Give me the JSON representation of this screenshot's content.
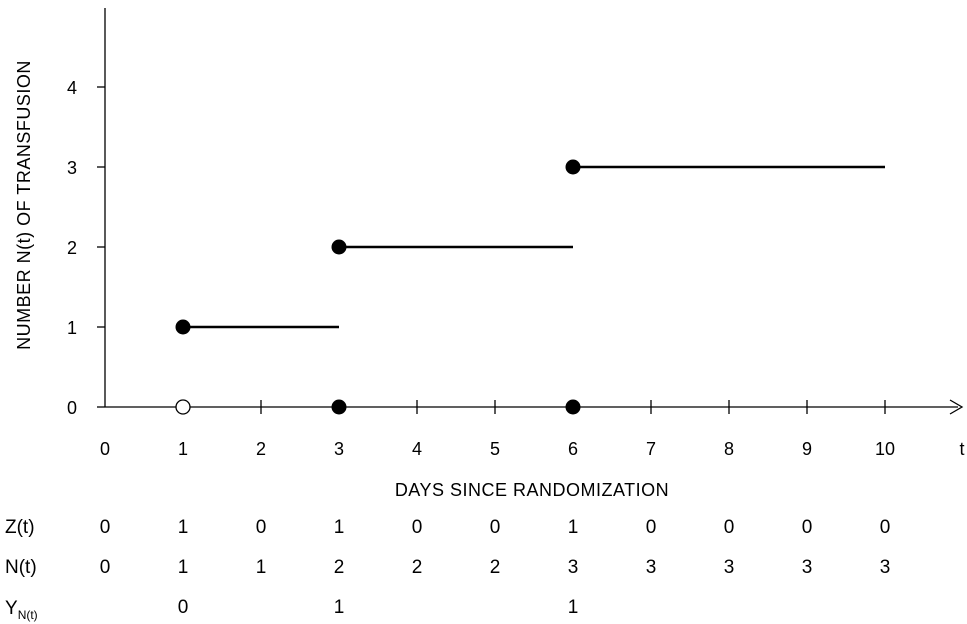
{
  "chart_data": {
    "type": "line",
    "ylabel": "NUMBER  N(t)  OF  TRANSFUSION",
    "xlabel": "DAYS  SINCE  RANDOMIZATION",
    "x_end_label": "t",
    "x_ticks": [
      0,
      1,
      2,
      3,
      4,
      5,
      6,
      7,
      8,
      9,
      10
    ],
    "y_ticks": [
      0,
      1,
      2,
      3,
      4
    ],
    "xlim": [
      0,
      11
    ],
    "ylim": [
      0,
      5
    ],
    "steps": [
      {
        "x_start": 1,
        "x_end": 3,
        "y": 1
      },
      {
        "x_start": 3,
        "x_end": 6,
        "y": 2
      },
      {
        "x_start": 6,
        "x_end": 10,
        "y": 3
      }
    ],
    "filled_points": [
      {
        "x": 1,
        "y": 1
      },
      {
        "x": 3,
        "y": 2
      },
      {
        "x": 6,
        "y": 3
      },
      {
        "x": 3,
        "y": 0
      },
      {
        "x": 6,
        "y": 0
      }
    ],
    "open_points": [
      {
        "x": 1,
        "y": 0
      }
    ]
  },
  "table": {
    "z_label": "Z(t)",
    "z_values": [
      "0",
      "1",
      "0",
      "1",
      "0",
      "0",
      "1",
      "0",
      "0",
      "0",
      "0"
    ],
    "n_label": "N(t)",
    "n_values": [
      "0",
      "1",
      "1",
      "2",
      "2",
      "2",
      "3",
      "3",
      "3",
      "3",
      "3"
    ],
    "y_label_main": "Y",
    "y_label_sub": "N(t)",
    "y_values": [
      "",
      "0",
      "",
      "1",
      "",
      "",
      "1",
      "",
      "",
      "",
      ""
    ]
  }
}
